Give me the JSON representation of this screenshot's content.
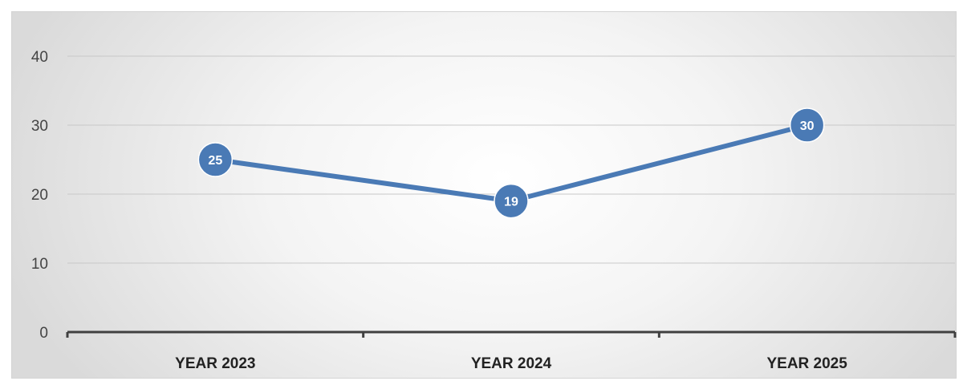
{
  "chart_data": {
    "type": "line",
    "title": "",
    "xlabel": "",
    "ylabel": "",
    "categories": [
      "YEAR 2023",
      "YEAR 2024",
      "YEAR 2025"
    ],
    "series": [
      {
        "values": [
          25,
          19,
          30
        ],
        "color": "#4a7ab5"
      }
    ],
    "y_ticks": [
      "0",
      "10",
      "20",
      "30",
      "40"
    ],
    "ylim": [
      0,
      40
    ],
    "grid": "horizontal",
    "legend": "none",
    "data_labels": true,
    "marker": "circle"
  }
}
